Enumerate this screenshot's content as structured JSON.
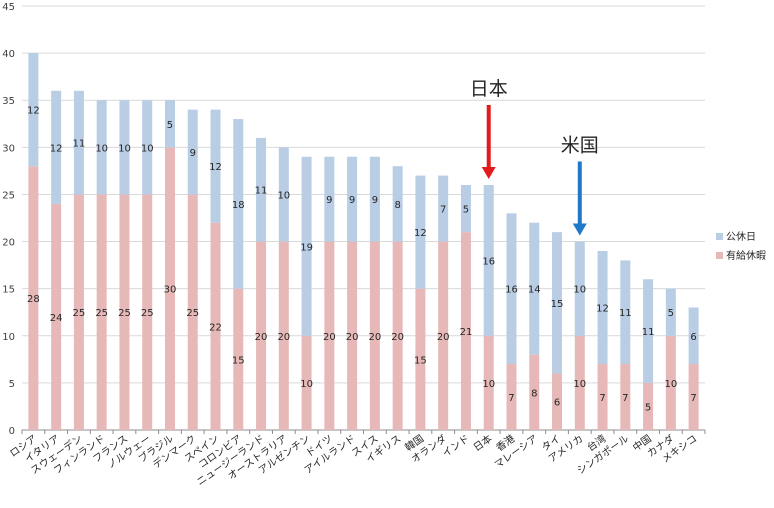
{
  "chart_data": {
    "type": "bar",
    "stacked": true,
    "categories": [
      "ロシア",
      "イタリア",
      "スウェーデン",
      "フィンランド",
      "フランス",
      "ノルウェー",
      "ブラジル",
      "デンマーク",
      "スペイン",
      "コロンビア",
      "ニュージーランド",
      "オーストラリア",
      "アルゼンチン",
      "ドイツ",
      "アイルランド",
      "スイス",
      "イギリス",
      "韓国",
      "オランダ",
      "インド",
      "日本",
      "香港",
      "マレーシア",
      "タイ",
      "アメリカ",
      "台湾",
      "シンガポール",
      "中国",
      "カナダ",
      "メキシコ"
    ],
    "series": [
      {
        "name": "有給休暇",
        "color": "#e6b9b8",
        "values": [
          28,
          24,
          25,
          25,
          25,
          25,
          30,
          25,
          22,
          15,
          20,
          20,
          10,
          20,
          20,
          20,
          20,
          15,
          20,
          21,
          10,
          7,
          8,
          6,
          10,
          7,
          7,
          5,
          10,
          7
        ]
      },
      {
        "name": "公休日",
        "color": "#b9cde5",
        "values": [
          12,
          12,
          11,
          10,
          10,
          10,
          5,
          9,
          12,
          18,
          11,
          10,
          19,
          9,
          9,
          9,
          8,
          12,
          7,
          5,
          16,
          16,
          14,
          15,
          10,
          12,
          11,
          11,
          5,
          6
        ]
      }
    ],
    "ylim": [
      0,
      45
    ],
    "yticks": [
      "0",
      "5",
      "10",
      "15",
      "20",
      "25",
      "30",
      "35",
      "40",
      "45"
    ],
    "grid": true,
    "legend_position": "right",
    "annotations": [
      {
        "text": "日本",
        "category": "日本",
        "arrow_color": "#e31a1c"
      },
      {
        "text": "米国",
        "category": "アメリカ",
        "arrow_color": "#1f78c8"
      }
    ]
  }
}
